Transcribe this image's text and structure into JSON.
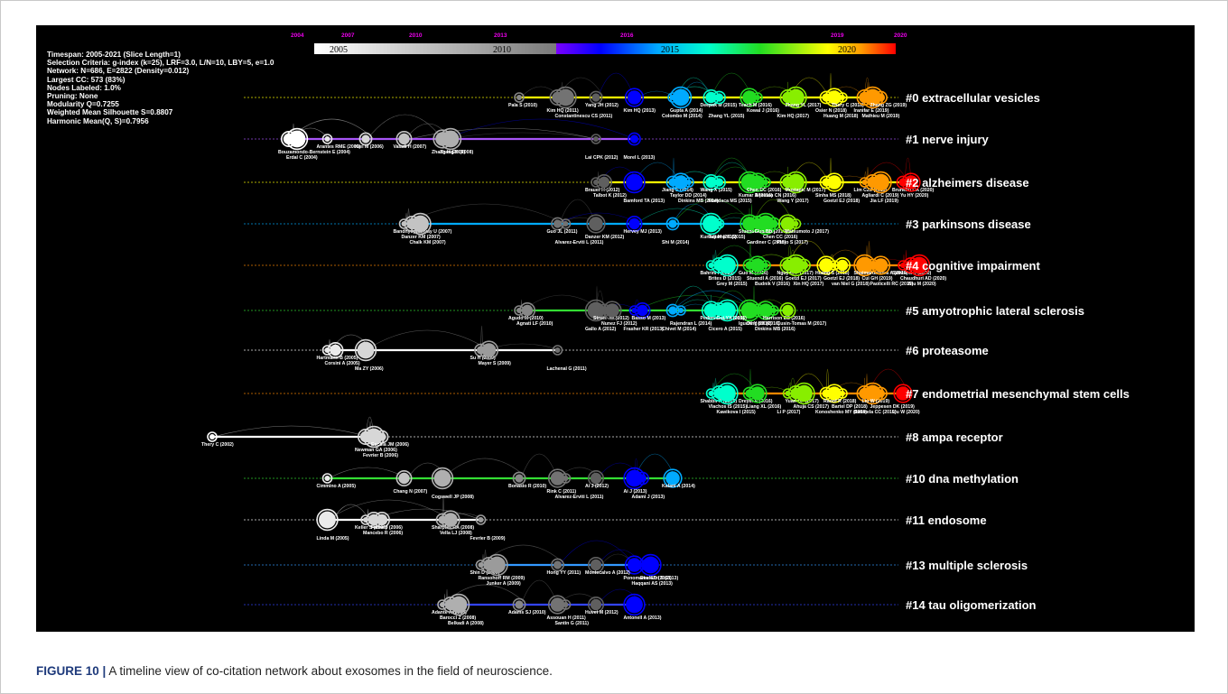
{
  "stats": [
    "Timespan: 2005-2021 (Slice Length=1)",
    "Selection Criteria: g-index (k=25), LRF=3.0, L/N=10, LBY=5, e=1.0",
    "Network: N=686, E=2822 (Density=0.012)",
    "Largest CC: 573 (83%)",
    "Nodes Labeled: 1.0%",
    "Pruning: None",
    "Modularity Q=0.7255",
    "Weighted Mean Silhouette S=0.8807",
    "Harmonic Mean(Q, S)=0.7956"
  ],
  "year_axis": [
    "2004",
    "2007",
    "2010",
    "2013",
    "2016",
    "2019",
    "2020"
  ],
  "color_bar": [
    "2005",
    "2010",
    "2015",
    "2020"
  ],
  "colors": {
    "background": "#000000",
    "caption_label": "#1e3a7b",
    "clusters": [
      "#ffff00",
      "#a855f7",
      "#ffff00",
      "#00aaff",
      "#ff8800",
      "#33dd33",
      "#ffffff",
      "#ff8800",
      "#ffffff",
      "#33dd33",
      "#ffffff",
      "#3399ff",
      "#3344ff"
    ]
  },
  "clusters": [
    {
      "label": "#0 extracellular vesicles",
      "nodes": [
        "Pala S (2010)",
        "Kim HQ (2011)",
        "Constantinescu CS (2011)",
        "Yang JH (2012)",
        "Kim HQ (2013)",
        "Colombo M (2014)",
        "Deepak M (2015)",
        "Gupta A (2014)",
        "Zhang YL (2015)",
        "Teach M (2016)",
        "Kowal J (2016)",
        "Kim HQ (2017)",
        "Zhang YL (2017)",
        "Osier N (2018)",
        "Huang M (2018)",
        "Thery C (2018)",
        "Iranifar E (2019)",
        "Mathieu M (2019)",
        "Zhang ZG (2019)"
      ]
    },
    {
      "label": "#1 nerve injury",
      "nodes": [
        "Arantes RME (2005)",
        "Bouzamondo-Bernstein E (2004)",
        "Erdal C (2004)",
        "Kiel M (2006)",
        "Zhang H (2008)",
        "Lai CPK (2012)",
        "Valadi H (2007)",
        "Zhang H (2008)",
        "Morel L (2013)"
      ]
    },
    {
      "label": "#2 alzheimers disease",
      "nodes": [
        "Brauer H (2012)",
        "Talbot K (2012)",
        "Bamford TA (2013)",
        "Jiang S (2014)",
        "Taylor DD (2014)",
        "Dinkins MB (2014)",
        "Wang X (2015)",
        "Kumar A (2016)",
        "Fiandaca MS (2015)",
        "Chen CC (2016)",
        "Winston CN (2016)",
        "Wang Y (2017)",
        "Mustapic M (2017)",
        "Sinha MS (2018)",
        "Goetzl EJ (2018)",
        "Lim CZJ (2019)",
        "Agliardi C (2019)",
        "Jia LF (2019)",
        "Brunello CA (2020)",
        "Yu HY (2020)"
      ]
    },
    {
      "label": "#3 parkinsons disease",
      "nodes": [
        "Bandhyopadhyay U (2007)",
        "Danzer KM (2007)",
        "Chalk KM (2007)",
        "Guo JL (2011)",
        "Danzer KM (2012)",
        "Alvarez-Erviti L (2011)",
        "Hervey MJ (2013)",
        "Kunadt M (2015)",
        "Shi M (2014)",
        "Stuendl A (2016)",
        "Tuyama K (2015)",
        "Gardiner C (2016)",
        "Guo BB (2016)",
        "Chen CC (2016)",
        "Pinto S (2017)",
        "Matsumoto J (2017)"
      ]
    },
    {
      "label": "#4 cognitive impairment",
      "nodes": [
        "Bahrini I (2015)",
        "Brites D (2015)",
        "Grey M (2015)",
        "Guo M (2016)",
        "Stuendl A (2016)",
        "Budnik V (2016)",
        "Nguyen P (2017)",
        "Goetzl EJ (2017)",
        "Xin HQ (2017)",
        "Huang S (2018)",
        "Goetzl EJ (2018)",
        "van Niel G (2018)",
        "Shaimardanova A (2019)",
        "Cui GH (2019)",
        "Paolicelli RC (2019)",
        "Saint-Pol J (2020)",
        "Chaudhuri AD (2020)",
        "Niu M (2020)"
      ]
    },
    {
      "label": "#5 amyotrophic lateral sclerosis",
      "nodes": [
        "Agudo M (2010)",
        "Agnati LF (2010)",
        "Gallo A (2012)",
        "Street JM (2012)",
        "Nunez FJ (2012)",
        "Frasher KR (2013)",
        "Basso M (2013)",
        "Iguchi Y (2016)",
        "Chivet M (2014)",
        "Pedersen MF (2015)",
        "Rajendran L (2014)",
        "Cicero A (2015)",
        "Gui YX (2015)",
        "Ding HX (2016)",
        "Dinkins MB (2016)",
        "Harrison EB (2016)",
        "Cusin-Tomas M (2017)"
      ]
    },
    {
      "label": "#6 proteasome",
      "nodes": [
        "Hartmann B (2005)",
        "Corsini A (2005)",
        "Ma ZY (2006)",
        "Su H (2009)",
        "Mayer S (2009)",
        "Lachenal G (2011)"
      ]
    },
    {
      "label": "#7 endometrial mesenchymal stem cells",
      "nodes": [
        "Shabbir A (2015)",
        "Vlachos IS (2015)",
        "Kawikova I (2015)",
        "Dreyer F (2016)",
        "Liang XL (2016)",
        "Li P (2017)",
        "Yuan DF (2017)",
        "Ahuja CS (2017)",
        "Konoshenko MY (2018)",
        "Raoof R (2018)",
        "Bartel DP (2018)",
        "Batistela CC (2019)",
        "Liu W (2019)",
        "Jeppesen DK (2019)",
        "Liu W (2020)"
      ]
    },
    {
      "label": "#8 ampa receptor",
      "nodes": [
        "Thery C (2002)",
        "Newman GA (2006)",
        "Fevrier B (2006)",
        "Escola JM (2006)"
      ]
    },
    {
      "label": "#10 dna methylation",
      "nodes": [
        "Cimmino A (2005)",
        "Chang N (2007)",
        "Cogswell JP (2008)",
        "Bonasio R (2010)",
        "Rink C (2011)",
        "Alvarez-Erviti L (2011)",
        "Ai J (2012)",
        "Ai J (2013)",
        "Adami J (2013)",
        "Kalani A (2014)"
      ]
    },
    {
      "label": "#11 endosome",
      "nodes": [
        "Keller S (2006)",
        "Mancebo R (2006)",
        "Linda M (2005)",
        "Sharples RA (2008)",
        "Vella LJ (2008)",
        "Fevrier B (2009)",
        "Faure J (2006)"
      ]
    },
    {
      "label": "#13 multiple sclerosis",
      "nodes": [
        "Shin D (2009)",
        "Ransohoff RM (2009)",
        "Junker A (2009)",
        "Hong YY (2011)",
        "Ponomarev ED (2013)",
        "Haqqani AS (2013)",
        "Montecalvo A (2012)",
        "Ghalozzi S (2013)"
      ]
    },
    {
      "label": "#14 tau oligomerization",
      "nodes": [
        "Adante A (2008)",
        "Barocci Z (2008)",
        "Belkadi A (2008)",
        "Adams SJ (2010)",
        "Assouan H (2011)",
        "Santin G (2011)",
        "Huvet M (2012)",
        "Antonell A (2013)"
      ]
    }
  ],
  "caption": {
    "label": "FIGURE 10 |",
    "text": "A timeline view of co-citation network about exosomes in the field of neuroscience."
  }
}
